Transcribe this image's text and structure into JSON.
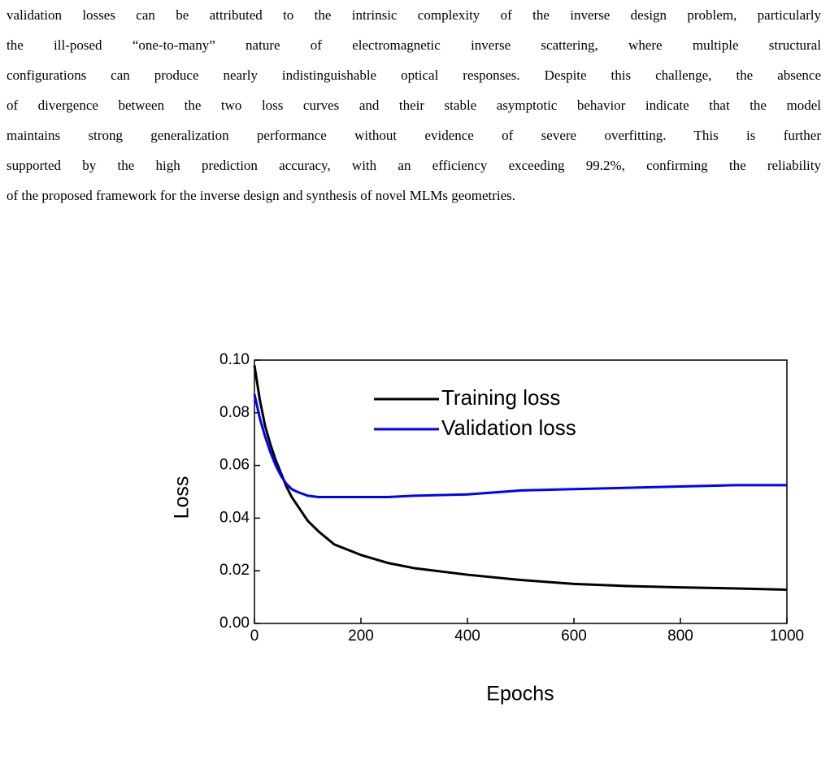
{
  "paragraph": [
    "validation losses can be attributed to the intrinsic complexity of the inverse design problem, particularly",
    "the ill-posed “one-to-many” nature of electromagnetic inverse scattering, where multiple structural",
    "configurations can produce nearly indistinguishable optical responses. Despite this challenge, the absence",
    "of divergence between the two loss curves and their stable asymptotic behavior indicate that the model",
    "maintains strong generalization performance without evidence of severe overfitting. This is further",
    "supported by the high prediction accuracy, with an efficiency exceeding 99.2%, confirming the reliability",
    "of the proposed framework for the inverse design and synthesis of novel MLMs geometries."
  ],
  "chart_data": {
    "type": "line",
    "xlabel": "Epochs",
    "ylabel": "Loss",
    "x": [
      0,
      10,
      20,
      30,
      40,
      50,
      60,
      70,
      80,
      100,
      120,
      150,
      200,
      250,
      300,
      400,
      500,
      600,
      700,
      800,
      900,
      1000
    ],
    "series": [
      {
        "name": "Training loss",
        "color": "#000000",
        "values": [
          0.098,
          0.085,
          0.075,
          0.068,
          0.062,
          0.057,
          0.052,
          0.048,
          0.045,
          0.039,
          0.035,
          0.03,
          0.026,
          0.023,
          0.021,
          0.0185,
          0.0165,
          0.015,
          0.0142,
          0.0137,
          0.0133,
          0.0128
        ]
      },
      {
        "name": "Validation loss",
        "color": "#0000ff",
        "values": [
          0.087,
          0.078,
          0.071,
          0.065,
          0.06,
          0.056,
          0.053,
          0.051,
          0.05,
          0.0485,
          0.048,
          0.048,
          0.048,
          0.048,
          0.0485,
          0.049,
          0.0505,
          0.051,
          0.0515,
          0.052,
          0.0525,
          0.0525
        ]
      }
    ],
    "xlim": [
      0,
      1000
    ],
    "xticks": [
      0,
      200,
      400,
      600,
      800,
      1000
    ],
    "ylim": [
      0,
      0.1
    ],
    "yticks": [
      {
        "value": 0,
        "label": "0.00"
      },
      {
        "value": 0.02,
        "label": "0.02"
      },
      {
        "value": 0.04,
        "label": "0.04"
      },
      {
        "value": 0.06,
        "label": "0.06"
      },
      {
        "value": 0.08,
        "label": "0.08"
      },
      {
        "value": 0.1,
        "label": "0.10"
      }
    ],
    "legend": "upper right"
  }
}
